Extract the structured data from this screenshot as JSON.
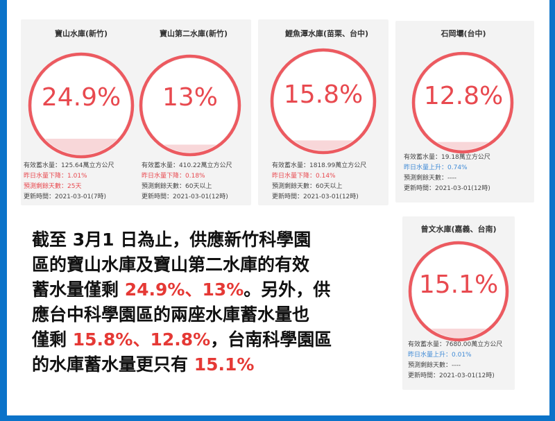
{
  "reservoirs": [
    {
      "name": "寶山水庫(新竹)",
      "percent": "24.9%",
      "level": 0.249,
      "volume": "有效蓄水量：125.64萬立方公尺",
      "change": "昨日水量下降：1.01%",
      "days": "預測剩餘天數：25天",
      "updated": "更新時間：2021-03-01(7時)",
      "trend": "down",
      "days_alert": true
    },
    {
      "name": "寶山第二水庫(新竹)",
      "percent": "13%",
      "level": 0.13,
      "volume": "有效蓄水量：410.22萬立方公尺",
      "change": "昨日水量下降：0.18%",
      "days": "預測剩餘天數：60天以上",
      "updated": "更新時間：2021-03-01(12時)",
      "trend": "down",
      "days_alert": false
    },
    {
      "name": "鯉魚潭水庫(苗栗、台中)",
      "percent": "15.8%",
      "level": 0.158,
      "volume": "有效蓄水量：1818.99萬立方公尺",
      "change": "昨日水量下降：0.14%",
      "days": "預測剩餘天數：60天以上",
      "updated": "更新時間：2021-03-01(12時)",
      "trend": "down",
      "days_alert": false
    },
    {
      "name": "石岡壩(台中)",
      "percent": "12.8%",
      "level": 0.128,
      "volume": "有效蓄水量：19.18萬立方公尺",
      "change": "昨日水量上升：0.74%",
      "days": "預測剩餘天數：----",
      "updated": "更新時間：2021-03-01(12時)",
      "trend": "up",
      "days_alert": false
    },
    {
      "name": "曾文水庫(嘉義、台南)",
      "percent": "15.1%",
      "level": 0.151,
      "volume": "有效蓄水量：7680.00萬立方公尺",
      "change": "昨日水量上升：0.01%",
      "days": "預測剩餘天數：----",
      "updated": "更新時間：2021-03-01(12時)",
      "trend": "up",
      "days_alert": false
    }
  ],
  "caption": {
    "l1": "截至 3月1 日為止，供應新竹科學園",
    "l2": "區的寶山水庫及寶山第二水庫的有效",
    "l3a": "蓄水量僅剩 ",
    "l3b": "24.9%、13%",
    "l3c": "。另外，供",
    "l4": "應台中科學園區的兩座水庫蓄水量也",
    "l5a": "僅剩 ",
    "l5b": "15.8%、12.8%",
    "l5c": "，台南科學園區",
    "l6a": "的水庫蓄水量更只有 ",
    "l6b": "15.1%"
  },
  "colors": {
    "accent": "#e8494f",
    "ring": "#ec5a60",
    "water": "#f8d7d9",
    "up": "#3f8ad6",
    "frame": "#0b73c9"
  }
}
